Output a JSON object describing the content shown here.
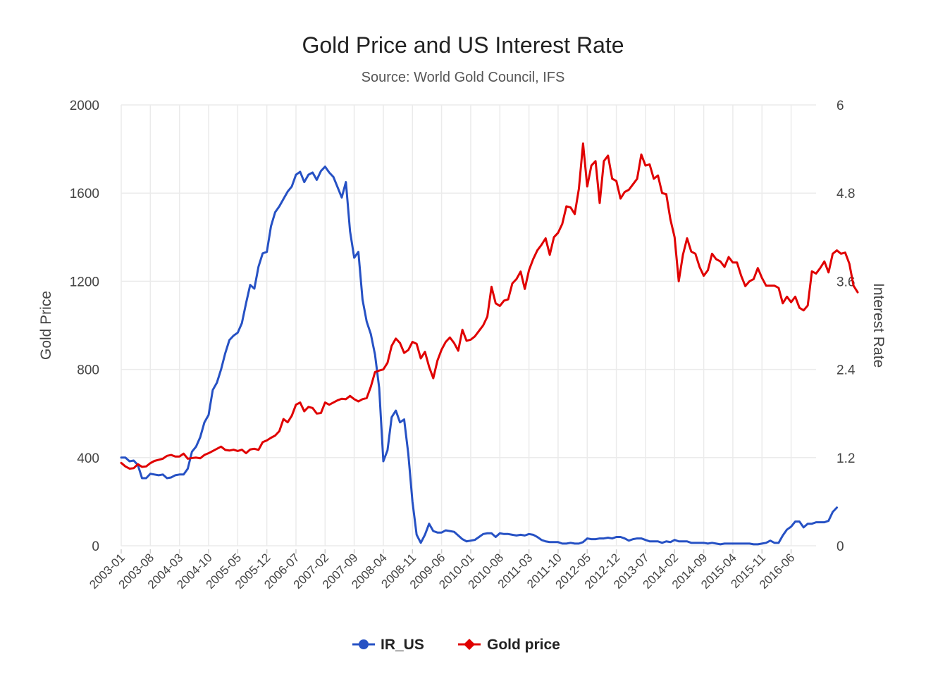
{
  "chart_data": {
    "type": "line",
    "title": "Gold Price and US Interest Rate",
    "subtitle": "Source: World Gold Council, IFS",
    "ylabel": "Gold Price",
    "y2label": "Interest Rate",
    "ylim": [
      0,
      2000
    ],
    "y2lim": [
      0,
      6
    ],
    "yticks": [
      "0",
      "400",
      "800",
      "1200",
      "1600",
      "2000"
    ],
    "y2ticks": [
      "0",
      "1.2",
      "2.4",
      "3.6",
      "4.8",
      "6"
    ],
    "xticks": [
      "2003-01",
      "2003-08",
      "2004-03",
      "2004-10",
      "2005-05",
      "2005-12",
      "2006-07",
      "2007-02",
      "2007-09",
      "2008-04",
      "2008-11",
      "2009-06",
      "2010-01",
      "2010-08",
      "2011-03",
      "2011-10",
      "2012-05",
      "2012-12",
      "2013-07",
      "2014-02",
      "2014-09",
      "2015-04",
      "2015-11",
      "2016-06"
    ],
    "x_start": "2003-01",
    "x_end": "2016-12",
    "grid": true,
    "legend_position": "bottom",
    "series": [
      {
        "name": "IR_US",
        "axis": "right",
        "color": "#2651c4",
        "marker": "circle",
        "values": [
          1.2,
          1.2,
          1.15,
          1.16,
          1.1,
          0.92,
          0.92,
          0.98,
          0.97,
          0.96,
          0.97,
          0.92,
          0.93,
          0.96,
          0.97,
          0.97,
          1.05,
          1.28,
          1.35,
          1.48,
          1.68,
          1.78,
          2.12,
          2.22,
          2.4,
          2.62,
          2.8,
          2.86,
          2.9,
          3.03,
          3.3,
          3.55,
          3.5,
          3.8,
          3.98,
          4.0,
          4.35,
          4.54,
          4.62,
          4.72,
          4.82,
          4.89,
          5.05,
          5.09,
          4.95,
          5.05,
          5.08,
          4.98,
          5.1,
          5.16,
          5.08,
          5.02,
          4.88,
          4.74,
          4.95,
          4.28,
          3.92,
          4.0,
          3.35,
          3.05,
          2.88,
          2.6,
          2.15,
          1.15,
          1.3,
          1.75,
          1.84,
          1.68,
          1.72,
          1.25,
          0.6,
          0.15,
          0.04,
          0.15,
          0.3,
          0.2,
          0.18,
          0.18,
          0.21,
          0.2,
          0.19,
          0.14,
          0.09,
          0.06,
          0.07,
          0.08,
          0.12,
          0.16,
          0.17,
          0.17,
          0.12,
          0.17,
          0.16,
          0.16,
          0.15,
          0.14,
          0.15,
          0.14,
          0.16,
          0.15,
          0.12,
          0.08,
          0.06,
          0.05,
          0.05,
          0.05,
          0.03,
          0.03,
          0.04,
          0.03,
          0.03,
          0.05,
          0.1,
          0.09,
          0.09,
          0.1,
          0.1,
          0.11,
          0.1,
          0.12,
          0.12,
          0.1,
          0.07,
          0.09,
          0.1,
          0.1,
          0.08,
          0.06,
          0.06,
          0.06,
          0.04,
          0.06,
          0.05,
          0.08,
          0.06,
          0.06,
          0.06,
          0.04,
          0.04,
          0.04,
          0.04,
          0.03,
          0.04,
          0.03,
          0.02,
          0.03,
          0.03,
          0.03,
          0.03,
          0.03,
          0.03,
          0.03,
          0.02,
          0.02,
          0.03,
          0.04,
          0.07,
          0.04,
          0.04,
          0.14,
          0.22,
          0.26,
          0.33,
          0.33,
          0.25,
          0.3,
          0.3,
          0.32,
          0.32,
          0.32,
          0.34,
          0.46,
          0.52
        ]
      },
      {
        "name": "Gold price",
        "axis": "left",
        "color": "#e00000",
        "marker": "diamond",
        "values": [
          376,
          360,
          350,
          352,
          370,
          358,
          360,
          375,
          385,
          390,
          395,
          408,
          412,
          405,
          405,
          418,
          395,
          398,
          400,
          397,
          412,
          420,
          430,
          440,
          450,
          435,
          432,
          436,
          430,
          436,
          420,
          437,
          440,
          435,
          470,
          478,
          490,
          500,
          520,
          575,
          560,
          590,
          640,
          650,
          610,
          630,
          625,
          600,
          602,
          650,
          640,
          650,
          660,
          667,
          665,
          680,
          665,
          655,
          665,
          670,
          722,
          788,
          795,
          800,
          830,
          907,
          940,
          920,
          875,
          888,
          925,
          916,
          850,
          880,
          812,
          760,
          840,
          890,
          925,
          945,
          920,
          885,
          980,
          930,
          935,
          950,
          975,
          1000,
          1040,
          1175,
          1100,
          1088,
          1112,
          1118,
          1190,
          1210,
          1244,
          1165,
          1250,
          1300,
          1340,
          1365,
          1395,
          1320,
          1400,
          1420,
          1460,
          1540,
          1535,
          1505,
          1620,
          1825,
          1630,
          1725,
          1745,
          1555,
          1745,
          1770,
          1665,
          1655,
          1575,
          1605,
          1615,
          1640,
          1665,
          1775,
          1725,
          1730,
          1665,
          1680,
          1600,
          1595,
          1480,
          1400,
          1200,
          1320,
          1395,
          1335,
          1325,
          1265,
          1225,
          1250,
          1325,
          1300,
          1290,
          1265,
          1310,
          1285,
          1285,
          1225,
          1178,
          1200,
          1210,
          1260,
          1215,
          1180,
          1180,
          1180,
          1170,
          1100,
          1130,
          1105,
          1130,
          1080,
          1068,
          1090,
          1245,
          1235,
          1260,
          1290,
          1240,
          1325,
          1340,
          1325,
          1330,
          1280,
          1180,
          1150
        ]
      }
    ]
  }
}
